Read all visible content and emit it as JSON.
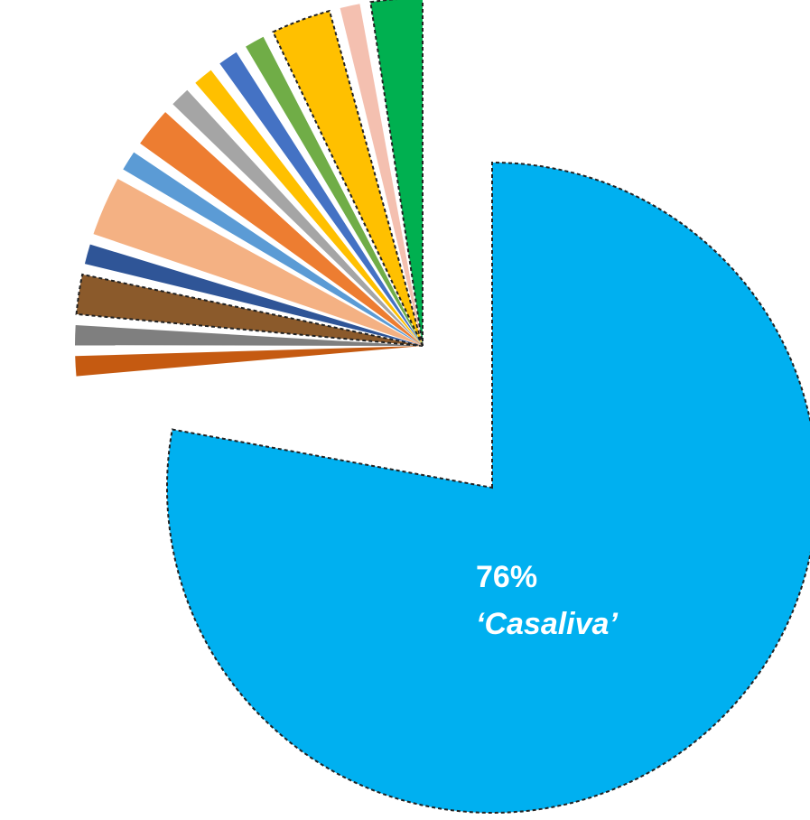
{
  "chart_data": {
    "type": "pie",
    "title": "",
    "legend": "none",
    "slices": [
      {
        "value": 76.0,
        "color": "#00B0F0",
        "outline": "dashed",
        "label_lines": [
          "76%",
          "‘Casaliva’"
        ]
      },
      {
        "value": 1.0,
        "color": "#C55A11",
        "outline": "none"
      },
      {
        "value": 1.0,
        "color": "#7F7F7F",
        "outline": "none"
      },
      {
        "value": 2.0,
        "color": "#8B5A2B",
        "outline": "dashed"
      },
      {
        "value": 1.0,
        "color": "#2F5597",
        "outline": "none"
      },
      {
        "value": 3.0,
        "color": "#F4B183",
        "outline": "none"
      },
      {
        "value": 1.0,
        "color": "#5B9BD5",
        "outline": "none"
      },
      {
        "value": 2.0,
        "color": "#ED7D31",
        "outline": "none"
      },
      {
        "value": 1.0,
        "color": "#A5A5A5",
        "outline": "none"
      },
      {
        "value": 1.0,
        "color": "#FFC000",
        "outline": "none"
      },
      {
        "value": 1.0,
        "color": "#4472C4",
        "outline": "none"
      },
      {
        "value": 1.0,
        "color": "#70AD47",
        "outline": "none"
      },
      {
        "value": 3.0,
        "color": "#FFC000",
        "outline": "dashed"
      },
      {
        "value": 1.0,
        "color": "#F4C0B0",
        "outline": "none"
      },
      {
        "value": 2.6,
        "color": "#00B050",
        "outline": "dashed"
      }
    ]
  }
}
